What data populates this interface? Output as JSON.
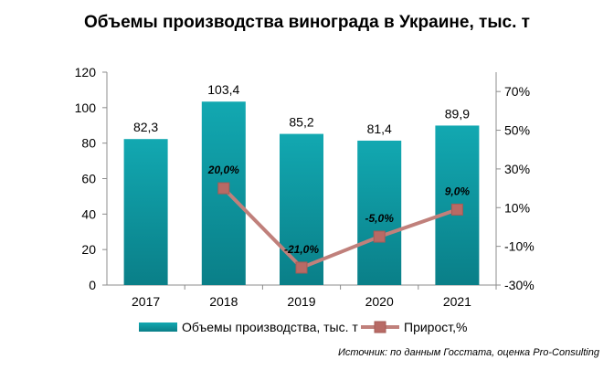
{
  "chart_data": {
    "type": "bar",
    "title": "Объемы производства винограда в Украине, тыс. т",
    "categories": [
      "2017",
      "2018",
      "2019",
      "2020",
      "2021"
    ],
    "series": [
      {
        "name": "Объемы производства, тыс. т",
        "type": "bar",
        "axis": "left",
        "values": [
          82.3,
          103.4,
          85.2,
          81.4,
          89.9
        ],
        "labels": [
          "82,3",
          "103,4",
          "85,2",
          "81,4",
          "89,9"
        ],
        "color": "#0e9ba4"
      },
      {
        "name": "Прирост,%",
        "type": "line",
        "axis": "right",
        "values": [
          null,
          20.0,
          -21.0,
          -5.0,
          9.0
        ],
        "labels": [
          "",
          "20,0%",
          "-21,0%",
          "-5,0%",
          "9,0%"
        ],
        "color": "#c0807b"
      }
    ],
    "y_left": {
      "min": 0,
      "max": 120,
      "ticks": [
        "0",
        "20",
        "40",
        "60",
        "80",
        "100",
        "120"
      ]
    },
    "y_right": {
      "min": -30,
      "max": 80,
      "ticks": [
        "-30%",
        "-10%",
        "10%",
        "30%",
        "50%",
        "70%"
      ]
    },
    "legend_position": "bottom",
    "grid": false
  },
  "source": "Источник: по данным Госстата, оценка Pro-Consulting"
}
